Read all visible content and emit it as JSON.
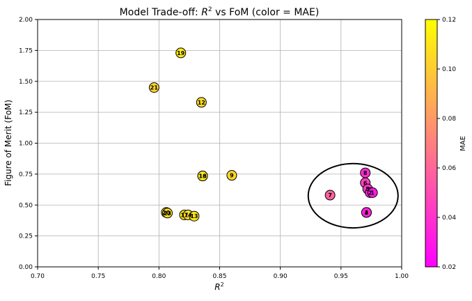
{
  "chart_data": {
    "type": "scatter",
    "title": "Model Trade-off: R² vs FoM (color = MAE)",
    "title_prefix": "Model Trade-off: ",
    "title_r": "R",
    "title_sup": "2",
    "title_suffix": " vs FoM (color = MAE)",
    "xlabel": "R²",
    "xlabel_r": "R",
    "xlabel_sup": "2",
    "ylabel": "Figure of Merit (FoM)",
    "xlim": [
      0.7,
      1.0
    ],
    "ylim": [
      0.0,
      2.0
    ],
    "grid": true,
    "x_ticks": [
      "0.70",
      "0.75",
      "0.80",
      "0.85",
      "0.90",
      "0.95",
      "1.00"
    ],
    "y_ticks": [
      "0.00",
      "0.25",
      "0.50",
      "0.75",
      "1.00",
      "1.25",
      "1.50",
      "1.75",
      "2.00"
    ],
    "colorbar": {
      "label": "MAE",
      "range": [
        0.02,
        0.12
      ],
      "ticks": [
        "0.02",
        "0.04",
        "0.06",
        "0.08",
        "0.10",
        "0.12"
      ],
      "colormap": "spring",
      "color_low": "#ff00ff",
      "color_high": "#ffff00"
    },
    "points": [
      {
        "label": "19",
        "x": 0.818,
        "y": 1.73,
        "mae": 0.112
      },
      {
        "label": "21",
        "x": 0.796,
        "y": 1.45,
        "mae": 0.103
      },
      {
        "label": "12",
        "x": 0.835,
        "y": 1.33,
        "mae": 0.106
      },
      {
        "label": "16",
        "x": 0.836,
        "y": 0.735,
        "mae": 0.11
      },
      {
        "label": "18",
        "x": 0.836,
        "y": 0.735,
        "mae": 0.11
      },
      {
        "label": "9",
        "x": 0.86,
        "y": 0.74,
        "mae": 0.104
      },
      {
        "label": "20",
        "x": 0.806,
        "y": 0.44,
        "mae": 0.106
      },
      {
        "label": "23",
        "x": 0.807,
        "y": 0.435,
        "mae": 0.106
      },
      {
        "label": "17",
        "x": 0.821,
        "y": 0.42,
        "mae": 0.111
      },
      {
        "label": "14",
        "x": 0.824,
        "y": 0.42,
        "mae": 0.108
      },
      {
        "label": "13",
        "x": 0.829,
        "y": 0.41,
        "mae": 0.11
      },
      {
        "label": "8",
        "x": 0.97,
        "y": 0.76,
        "mae": 0.038
      },
      {
        "label": "6",
        "x": 0.97,
        "y": 0.68,
        "mae": 0.045
      },
      {
        "label": "5",
        "x": 0.972,
        "y": 0.63,
        "mae": 0.042
      },
      {
        "label": "2",
        "x": 0.974,
        "y": 0.6,
        "mae": 0.035
      },
      {
        "label": "1",
        "x": 0.976,
        "y": 0.6,
        "mae": 0.03
      },
      {
        "label": "7",
        "x": 0.941,
        "y": 0.58,
        "mae": 0.058
      },
      {
        "label": "3",
        "x": 0.971,
        "y": 0.44,
        "mae": 0.034
      },
      {
        "label": "4",
        "x": 0.971,
        "y": 0.44,
        "mae": 0.034
      }
    ],
    "highlight_ellipse": {
      "cx": 0.96,
      "cy": 0.575,
      "rx": 0.037,
      "ry": 0.26
    }
  }
}
